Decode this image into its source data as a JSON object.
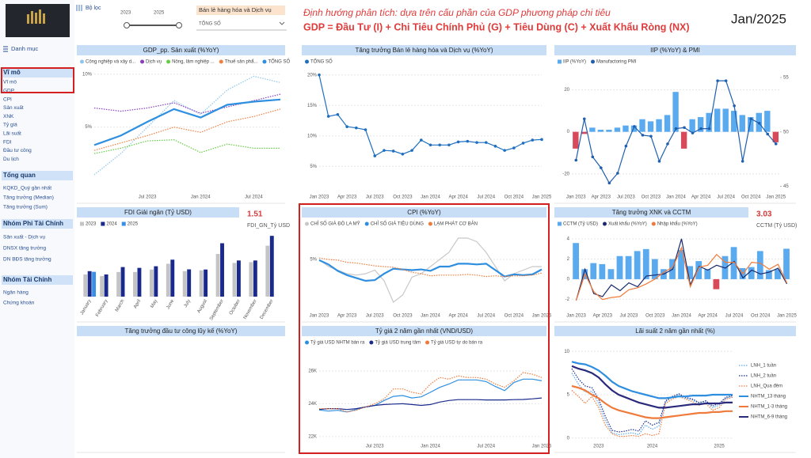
{
  "sidebar": {
    "filter_label": "Bộ lọc",
    "year_from": "2023",
    "year_to": "2025",
    "dropdown_sector": "Bán lẻ hàng hóa và Dịch vụ",
    "dropdown_item": "TỔNG SỐ",
    "menu": "Danh mục",
    "groups": [
      {
        "title": "Vĩ mô",
        "items": [
          "Vĩ mô",
          "GDP",
          "CPI",
          "Sản xuất",
          "XNK",
          "Tỷ giá",
          "Lãi suất",
          "FDI",
          "Đầu tư công",
          "Du lịch"
        ]
      },
      {
        "title": "Tổng quan",
        "items": [
          "KQKD_Quý gần nhất",
          "Tăng trưởng (Median)",
          "Tăng trưởng (Sum)"
        ]
      },
      {
        "title": "Nhóm Phi Tài Chính",
        "items": [
          "Sản xuất - Dịch vụ",
          "DNSX tăng trưởng",
          "DN BĐS tăng trưởng"
        ]
      },
      {
        "title": "Nhóm Tài Chính",
        "items": [
          "Ngân hàng",
          "Chứng khoán"
        ]
      }
    ]
  },
  "header": {
    "subtitle": "Định hướng phân tích: dựa trên cấu phần của GDP phương pháp chi tiêu",
    "formula": "GDP  =  Đầu Tư (I)  +  Chi Tiêu Chính Phủ (G)  +  Tiêu Dùng (C)  +  Xuất Khẩu Ròng (NX)",
    "period": "Jan/2025"
  },
  "chart_data": [
    {
      "type": "line",
      "title": "GDP_pp. Sản xuất (%YoY)",
      "categories": [
        null,
        null,
        "Jul 2023",
        null,
        "Jan 2024",
        null,
        "Jul 2024",
        null
      ],
      "ylim": [
        -1,
        10.5
      ],
      "yticks": [
        {
          "value": 5,
          "label": "5%"
        },
        {
          "value": 10,
          "label": "10%"
        }
      ],
      "grid": true,
      "series": [
        {
          "name": "Công nghiệp và xây d...",
          "color": "#8ec7ee",
          "style": "dotted",
          "values": [
            0.5,
            2.5,
            5.0,
            7.5,
            6.2,
            8.5,
            9.8,
            9.2
          ]
        },
        {
          "name": "Dịch vụ",
          "color": "#8a3fbf",
          "style": "dotted",
          "values": [
            6.8,
            6.5,
            6.8,
            7.3,
            6.3,
            6.9,
            7.5,
            8.1
          ]
        },
        {
          "name": "Nông, lâm nghiệp ...",
          "color": "#66cc44",
          "style": "dotted",
          "values": [
            2.5,
            3.0,
            3.7,
            3.8,
            2.6,
            3.4,
            3.0,
            3.0
          ]
        },
        {
          "name": "Thuế sản phẩ...",
          "color": "#f08040",
          "style": "dotted",
          "values": [
            2.8,
            3.5,
            4.2,
            5.0,
            4.5,
            5.5,
            6.0,
            6.7
          ]
        },
        {
          "name": "TỔNG SỐ",
          "color": "#2e8fe0",
          "style": "thick",
          "values": [
            3.3,
            4.2,
            5.5,
            6.7,
            5.9,
            7.1,
            7.4,
            7.6
          ]
        }
      ]
    },
    {
      "type": "line",
      "title": "Tăng trưởng Bán lẻ hàng hóa và Dịch vụ (%YoY)",
      "categories": [
        "Jan 2023",
        null,
        null,
        "Apr 2023",
        null,
        null,
        "Jul 2023",
        null,
        null,
        "Oct 2023",
        null,
        null,
        "Jan 2024",
        null,
        null,
        "Apr 2024",
        null,
        null,
        "Jul 2024",
        null,
        null,
        "Oct 2024",
        null,
        null,
        "Jan 2025"
      ],
      "ylim": [
        1,
        21
      ],
      "yticks": [
        {
          "value": 5,
          "label": "5%"
        },
        {
          "value": 10,
          "label": "10%"
        },
        {
          "value": 15,
          "label": "15%"
        },
        {
          "value": 20,
          "label": "20%"
        }
      ],
      "grid": true,
      "series": [
        {
          "name": "TỔNG SỐ",
          "color": "#1f6fc0",
          "style": "solid",
          "markers": true,
          "values": [
            20.0,
            13.2,
            13.5,
            11.5,
            11.3,
            11.0,
            6.7,
            7.6,
            7.5,
            7.0,
            7.6,
            9.3,
            8.5,
            8.5,
            8.5,
            9.0,
            9.1,
            8.9,
            8.9,
            8.3,
            7.6,
            8.0,
            8.8,
            9.3,
            9.4
          ]
        }
      ]
    },
    {
      "type": "combo",
      "title": "IIP (%YoY) & PMI",
      "categories": [
        "Jan 2023",
        null,
        null,
        "Apr 2023",
        null,
        null,
        "Jul 2023",
        null,
        null,
        "Oct 2023",
        null,
        null,
        "Jan 2024",
        null,
        null,
        "Apr 2024",
        null,
        null,
        "Jul 2024",
        null,
        null,
        "Oct 2024",
        null,
        null,
        "Jan 2025"
      ],
      "ylim": [
        -28,
        30
      ],
      "yticks": [
        -20,
        0,
        20
      ],
      "y2lim": [
        44.6,
        55.8
      ],
      "y2ticks": [
        45,
        50,
        55
      ],
      "grid": true,
      "series": [
        {
          "name": "IIP (%YoY)",
          "type": "bar",
          "color": "#5aaaf0",
          "negative_color": "#d84a5a",
          "values": [
            -8,
            -1,
            2,
            1,
            1,
            2,
            3,
            3,
            6,
            5,
            6,
            8,
            19,
            -8,
            6,
            7,
            9,
            11,
            11,
            10,
            8,
            7,
            9,
            10,
            -5
          ]
        },
        {
          "name": "Manufactoring PMI",
          "axis": "y2",
          "color": "#1f5fae",
          "style": "solid",
          "markers": true,
          "values": [
            47.4,
            51.2,
            47.7,
            46.7,
            45.3,
            46.2,
            48.7,
            50.5,
            49.7,
            49.6,
            47.3,
            48.9,
            50.3,
            50.4,
            49.9,
            50.3,
            50.3,
            54.7,
            54.7,
            52.4,
            47.3,
            51.2,
            50.8,
            49.8,
            48.9
          ]
        }
      ]
    },
    {
      "type": "bar",
      "title": "FDI Giải ngân (Tỷ USD)",
      "card": {
        "value": 1.51,
        "label": "FDI_GN_Tỷ USD"
      },
      "categories": [
        "January",
        "February",
        "March",
        "April",
        "May",
        "June",
        "July",
        "August",
        "September",
        "October",
        "November",
        "December"
      ],
      "series": [
        {
          "name": "2023",
          "color": "#c4c4c4",
          "values": [
            1.35,
            1.25,
            1.5,
            1.5,
            1.65,
            2.0,
            1.55,
            1.6,
            2.6,
            2.05,
            2.1,
            3.1
          ]
        },
        {
          "name": "2024",
          "color": "#1a2a8c",
          "values": [
            1.55,
            1.35,
            1.8,
            1.75,
            1.85,
            2.25,
            1.66,
            1.65,
            3.25,
            2.2,
            2.2,
            3.7
          ]
        },
        {
          "name": "2025",
          "color": "#3a8ee6",
          "values": [
            1.51,
            null,
            null,
            null,
            null,
            null,
            null,
            null,
            null,
            null,
            null,
            null
          ]
        }
      ]
    },
    {
      "type": "line",
      "title": "CPI (%YoY)",
      "categories": [
        "Jan 2023",
        null,
        null,
        "Apr 2023",
        null,
        null,
        "Jul 2023",
        null,
        null,
        "Oct 2023",
        null,
        null,
        "Jan 2024",
        null,
        null,
        "Apr 2024",
        null,
        null,
        "Jul 2024",
        null,
        null,
        "Oct 2024",
        null,
        null,
        "Jan 2025"
      ],
      "ylim": [
        -2,
        9
      ],
      "yticks": [
        {
          "value": 5,
          "label": "5%"
        }
      ],
      "grid": true,
      "series": [
        {
          "name": "CHỈ SỐ GIÁ ĐÔ LA MỸ",
          "color": "#c8c8c8",
          "style": "solid",
          "values": [
            5.0,
            4.0,
            3.5,
            3.0,
            2.8,
            3.0,
            3.5,
            2.0,
            -1.0,
            0.0,
            2.5,
            3.0,
            4.0,
            5.0,
            6.0,
            8.0,
            8.0,
            7.5,
            6.0,
            4.0,
            2.0,
            3.0,
            3.5,
            4.0,
            4.0
          ]
        },
        {
          "name": "CHỈ SỐ GIÁ TIÊU DÙNG",
          "color": "#2e8fe0",
          "style": "thick",
          "values": [
            4.9,
            4.3,
            3.4,
            2.8,
            2.4,
            2.0,
            2.1,
            3.0,
            3.7,
            3.6,
            3.5,
            3.6,
            3.4,
            4.0,
            4.0,
            4.4,
            4.4,
            4.3,
            4.4,
            3.5,
            2.6,
            2.9,
            2.8,
            2.9,
            3.6
          ]
        },
        {
          "name": "LẠM PHÁT CƠ BẢN",
          "color": "#f07a3a",
          "style": "dotted",
          "values": [
            5.2,
            5.0,
            4.9,
            4.6,
            4.5,
            4.3,
            4.1,
            4.0,
            3.9,
            3.6,
            3.2,
            3.0,
            2.7,
            2.8,
            2.8,
            2.8,
            2.9,
            2.8,
            2.6,
            2.7,
            2.6,
            2.7,
            2.7,
            2.8,
            3.1
          ]
        }
      ]
    },
    {
      "type": "combo",
      "title": "Tăng trưởng XNK và CCTM",
      "card": {
        "value": 3.03,
        "label": "CCTM (Tỷ USD)"
      },
      "categories": [
        "Jan 2023",
        null,
        null,
        "Apr 2023",
        null,
        null,
        "Jul 2023",
        null,
        null,
        "Oct 2023",
        null,
        null,
        "Jan 2024",
        null,
        null,
        "Apr 2024",
        null,
        null,
        "Jul 2024",
        null,
        null,
        "Oct 2024",
        null,
        null,
        "Jan 2025"
      ],
      "ylim": [
        -3,
        4.8
      ],
      "yticks": [
        -2,
        0,
        2,
        4
      ],
      "y2lim": [
        -30,
        50
      ],
      "grid": true,
      "series": [
        {
          "name": "CCTM (Tỷ USD)",
          "type": "bar",
          "color": "#5aaaf0",
          "negative_color": "#d84a5a",
          "values": [
            3.6,
            1.0,
            1.6,
            1.5,
            1.0,
            2.3,
            2.3,
            2.8,
            3.0,
            2.0,
            1.0,
            2.0,
            2.9,
            1.3,
            1.8,
            1.0,
            -1.0,
            2.3,
            3.2,
            1.1,
            1.2,
            2.8,
            0.9,
            1.0,
            3.03
          ]
        },
        {
          "name": "Xuất khẩu (%YoY)",
          "axis": "y2",
          "color": "#1a2a6c",
          "style": "solid",
          "values": [
            -21,
            11,
            -14,
            -17,
            -5,
            -11,
            -3,
            -7,
            4,
            5,
            6,
            11,
            42,
            -5,
            14,
            10,
            15,
            12,
            19,
            2,
            10,
            6,
            8,
            12,
            -4
          ]
        },
        {
          "name": "Nhập khẩu (%YoY)",
          "axis": "y2",
          "color": "#f07a3a",
          "style": "solid",
          "values": [
            -21,
            6,
            -12,
            -20,
            -18,
            -17,
            -10,
            -8,
            -4,
            1,
            8,
            13,
            33,
            -7,
            13,
            15,
            26,
            18,
            18,
            6,
            18,
            17,
            11,
            16,
            -3
          ]
        }
      ]
    },
    {
      "type": "line",
      "title": "Tăng trưởng đầu tư công lũy kế (%YoY)"
    },
    {
      "type": "line",
      "title": "Tỷ giá 2 năm gần nhất (VND/USD)",
      "categories": [
        null,
        null,
        null,
        null,
        null,
        null,
        "Jul 2023",
        null,
        null,
        null,
        null,
        null,
        "Jan 2024",
        null,
        null,
        null,
        null,
        null,
        "Jul 2024",
        null,
        null,
        null,
        null,
        null,
        "Jan 2025"
      ],
      "ylim": [
        21800,
        27300
      ],
      "yticks": [
        {
          "value": 22000,
          "label": "22K"
        },
        {
          "value": 24000,
          "label": "24K"
        },
        {
          "value": 26000,
          "label": "26K"
        }
      ],
      "grid": true,
      "series": [
        {
          "name": "Tỷ giá USD NHTM bán ra",
          "color": "#2e8fe0",
          "style": "solid",
          "values": [
            23620,
            23550,
            23600,
            23500,
            23650,
            23800,
            23900,
            24200,
            24450,
            24500,
            24350,
            24420,
            24700,
            25000,
            25200,
            25450,
            25450,
            25450,
            25350,
            25050,
            24800,
            25300,
            25500,
            25500,
            25400
          ]
        },
        {
          "name": "Tỷ giá USD trung tâm",
          "color": "#1a2a8c",
          "style": "solid",
          "values": [
            23650,
            23700,
            23700,
            23650,
            23700,
            23800,
            23900,
            23950,
            23980,
            24000,
            23950,
            23900,
            23950,
            24100,
            24200,
            24250,
            24250,
            24250,
            24230,
            24230,
            24230,
            24250,
            24260,
            24300,
            24350
          ]
        },
        {
          "name": "Tỷ giá USD tự do bán ra",
          "color": "#f07a3a",
          "style": "dotted",
          "values": [
            23700,
            23700,
            23700,
            23500,
            23600,
            23800,
            24000,
            24300,
            24900,
            24900,
            24700,
            24600,
            25200,
            25600,
            25500,
            25700,
            25600,
            25600,
            25500,
            25200,
            25000,
            25400,
            25900,
            25800,
            25600
          ]
        }
      ]
    },
    {
      "type": "line",
      "title": "Lãi suất 2 năm gần nhất (%)",
      "categories": [
        null,
        null,
        null,
        null,
        "2023",
        null,
        null,
        null,
        null,
        null,
        null,
        null,
        "2024",
        null,
        null,
        null,
        null,
        null,
        null,
        null,
        null,
        null,
        "2025",
        null,
        null
      ],
      "ylim": [
        -0.2,
        10.2
      ],
      "yticks": [
        0,
        5,
        10
      ],
      "grid": true,
      "series": [
        {
          "name": "LNH_1 tuần",
          "color": "#5aaaf0",
          "style": "dotted",
          "values": [
            7.5,
            6.2,
            5.3,
            5.4,
            4.0,
            2.0,
            0.6,
            0.4,
            0.5,
            0.6,
            0.4,
            1.5,
            1.0,
            1.4,
            4.2,
            4.7,
            5.0,
            4.6,
            4.4,
            4.0,
            4.2,
            3.5,
            3.8,
            4.6,
            4.8
          ]
        },
        {
          "name": "LNH_2 tuần",
          "color": "#1a2a8c",
          "style": "dotted",
          "values": [
            8.0,
            6.8,
            6.0,
            5.8,
            4.5,
            2.5,
            0.9,
            0.7,
            0.8,
            1.0,
            0.8,
            2.0,
            1.5,
            1.8,
            4.3,
            4.8,
            5.1,
            4.7,
            4.5,
            4.1,
            4.3,
            3.7,
            4.0,
            4.7,
            4.9
          ]
        },
        {
          "name": "LNH_Qua đêm",
          "color": "#f07a3a",
          "style": "dotted",
          "values": [
            5.5,
            4.8,
            4.0,
            4.8,
            3.5,
            1.5,
            0.5,
            0.2,
            0.2,
            0.3,
            0.2,
            0.5,
            0.3,
            0.5,
            4.0,
            4.5,
            4.8,
            4.5,
            4.2,
            3.8,
            4.0,
            3.2,
            3.5,
            4.5,
            4.7
          ]
        },
        {
          "name": "NHTM_13 tháng",
          "color": "#2e8fe0",
          "style": "thick",
          "values": [
            8.8,
            8.6,
            8.5,
            8.2,
            7.8,
            7.2,
            6.5,
            6.0,
            5.7,
            5.4,
            5.2,
            5.0,
            4.8,
            4.6,
            4.6,
            4.7,
            4.8,
            4.8,
            4.9,
            4.9,
            4.9,
            5.0,
            5.0,
            5.0,
            5.0
          ]
        },
        {
          "name": "NHTM_1-3 tháng",
          "color": "#f07a3a",
          "style": "thick",
          "values": [
            6.0,
            5.8,
            5.5,
            5.0,
            4.6,
            4.0,
            3.5,
            3.2,
            3.0,
            2.8,
            2.6,
            2.4,
            2.3,
            2.3,
            2.4,
            2.5,
            2.6,
            2.7,
            2.8,
            2.9,
            2.9,
            3.0,
            3.0,
            3.1,
            3.1
          ]
        },
        {
          "name": "NHTM_6-9 tháng",
          "color": "#2a2a7c",
          "style": "thick",
          "values": [
            8.3,
            8.0,
            7.8,
            7.5,
            7.0,
            6.2,
            5.5,
            5.0,
            4.7,
            4.4,
            4.1,
            3.9,
            3.7,
            3.5,
            3.5,
            3.6,
            3.7,
            3.8,
            3.9,
            3.9,
            4.0,
            4.0,
            4.0,
            4.1,
            4.1
          ]
        }
      ]
    }
  ]
}
